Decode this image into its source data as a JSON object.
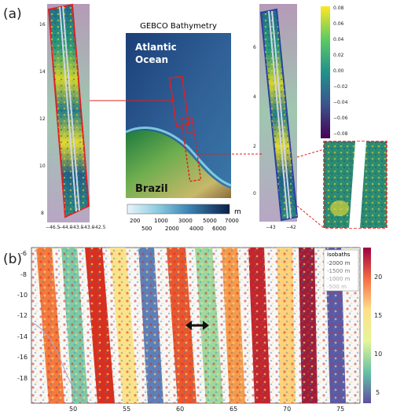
{
  "panel_a": {
    "label": "(a)",
    "map": {
      "title": "GEBCO Bathymetry",
      "ocean_label_1": "Atlantic",
      "ocean_label_2": "Ocean",
      "land_label": "Brazil",
      "legend_unit": "m",
      "legend_top": [
        "200",
        "1000",
        "3000",
        "5000",
        "7000"
      ],
      "legend_bottom": [
        "500",
        "2000",
        "4000",
        "6000"
      ]
    },
    "left_swath": {
      "yticks": [
        "16",
        "14",
        "12",
        "10",
        "8"
      ],
      "xticks": [
        "−46.5",
        "−44.0",
        "−43.5",
        "−43.0",
        "−42.5"
      ]
    },
    "right_swath": {
      "yticks": [
        "6",
        "4",
        "2",
        "0"
      ],
      "xticks": [
        "−43",
        "−42"
      ],
      "colorbar_ticks": [
        "0.08",
        "0.06",
        "0.04",
        "0.02",
        "0.00",
        "−0.02",
        "−0.04",
        "−0.06",
        "−0.08"
      ]
    }
  },
  "panel_b": {
    "label": "(b)",
    "yticks": [
      "-6",
      "-8",
      "-10",
      "-12",
      "-14",
      "-16",
      "-18"
    ],
    "xticks": [
      "50",
      "55",
      "60",
      "65",
      "70",
      "75"
    ],
    "colorbar_ticks": [
      "20",
      "15",
      "10",
      "5"
    ],
    "legend": {
      "title": "isobaths",
      "items": [
        "-2000 m",
        "-1500 m",
        "-1000 m",
        "-500 m"
      ],
      "colors": [
        "#4a4a4a",
        "#8a8a8a",
        "#b3b3b3",
        "#d0d0d0"
      ]
    }
  }
}
